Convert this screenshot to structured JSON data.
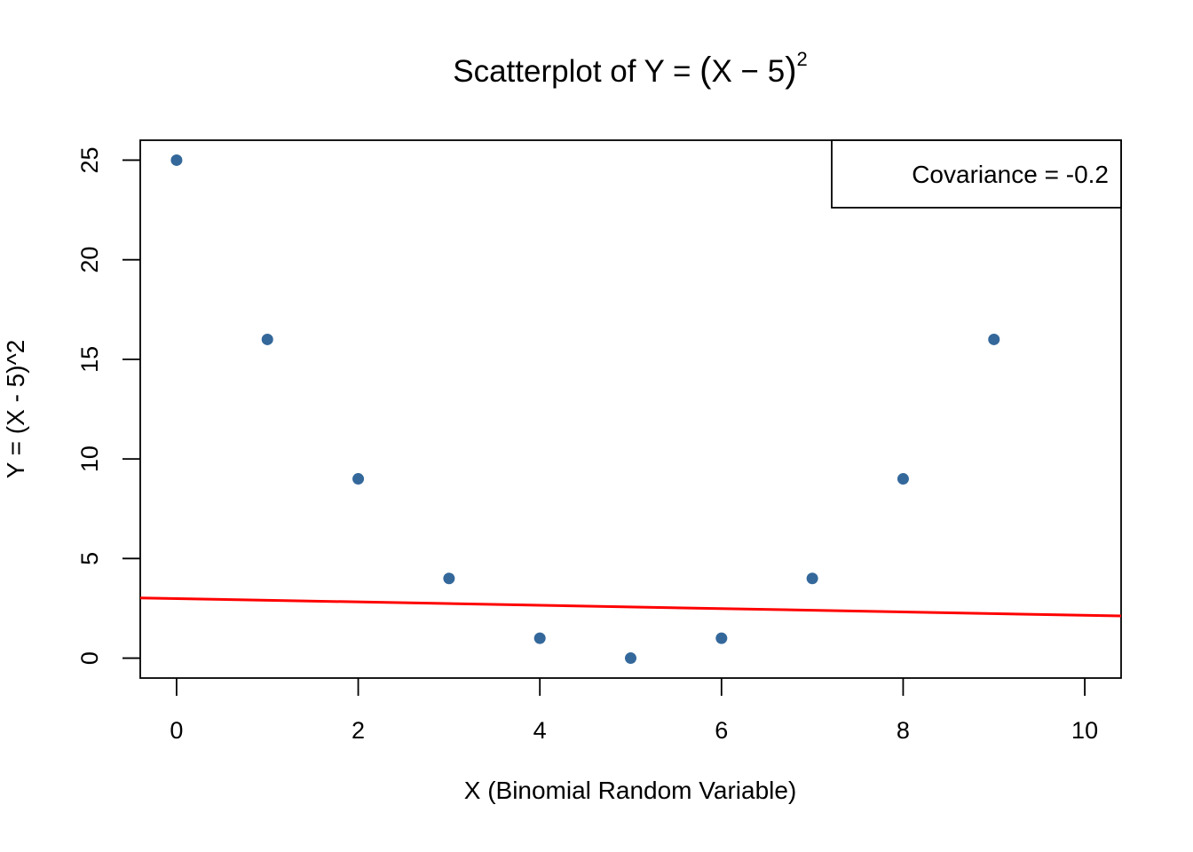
{
  "chart_data": {
    "type": "scatter",
    "title": {
      "prefix": "Scatterplot of Y = ",
      "open_paren": "(",
      "inner": "X − 5",
      "close_paren": ")",
      "exponent": "2"
    },
    "xlabel": "X (Binomial Random Variable)",
    "ylabel": "Y = (X - 5)^2",
    "xlim": [
      -0.4,
      10.4
    ],
    "ylim": [
      -1,
      26
    ],
    "x_ticks": [
      0,
      2,
      4,
      6,
      8,
      10
    ],
    "y_ticks": [
      0,
      5,
      10,
      15,
      20,
      25
    ],
    "grid": false,
    "series": [
      {
        "points": [
          {
            "x": 0,
            "y": 25
          },
          {
            "x": 1,
            "y": 16
          },
          {
            "x": 2,
            "y": 9
          },
          {
            "x": 3,
            "y": 4
          },
          {
            "x": 4,
            "y": 1
          },
          {
            "x": 5,
            "y": 0
          },
          {
            "x": 6,
            "y": 1
          },
          {
            "x": 7,
            "y": 4
          },
          {
            "x": 8,
            "y": 9
          },
          {
            "x": 9,
            "y": 16
          }
        ],
        "color": "#34689b"
      }
    ],
    "fit_line": {
      "intercept": 2.99,
      "slope": -0.084,
      "color": "#ff0000"
    },
    "legend": {
      "text": "Covariance = -0.2",
      "position": "top-right"
    }
  }
}
